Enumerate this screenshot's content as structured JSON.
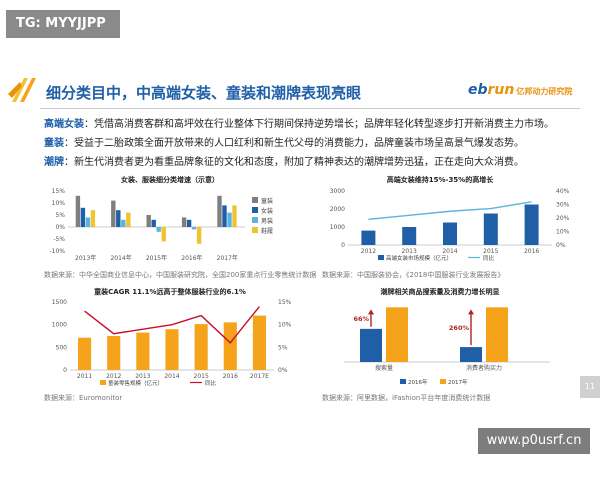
{
  "watermark_top": "TG: MYYJJPP",
  "watermark_bottom": "www.p0usrf.cn",
  "title": "细分类目中，中高端女装、童装和潮牌表现亮眼",
  "brand": {
    "main": "eb",
    "accent": "run",
    "sub": "亿邦动力研究院"
  },
  "paragraphs": [
    {
      "label": "高端女装",
      "text": "：凭借高消费客群和高坪效在行业整体下行期间保持逆势增长；品牌年轻化转型逐步打开新消费主力市场。"
    },
    {
      "label": "童装",
      "text": "：受益于二胎政策全面开放带来的人口红利和新生代父母的消费能力，品牌童装市场呈高景气爆发态势。"
    },
    {
      "label": "潮牌",
      "text": "：新生代消费者更为看重品牌象征的文化和态度，附加了精神表达的潮牌增势迅猛，正在走向大众消费。"
    }
  ],
  "page_number": "11",
  "colors": {
    "gray": "#7f7f7f",
    "blue": "#1f5fa8",
    "lightblue": "#5bb3df",
    "yellow": "#f2c230",
    "orange": "#f4a31b",
    "red": "#c8102e",
    "darkred": "#b22222"
  },
  "chart_data": [
    {
      "type": "bar",
      "title": "女装、服装细分类增速（示意）",
      "categories": [
        "2013年",
        "2014年",
        "2015年",
        "2016年",
        "2017年"
      ],
      "series": [
        {
          "name": "童装",
          "values": [
            13,
            11,
            5,
            4,
            13
          ]
        },
        {
          "name": "女装",
          "values": [
            8,
            7,
            3,
            3,
            9
          ]
        },
        {
          "name": "男装",
          "values": [
            4,
            3,
            -2,
            -1,
            6
          ]
        },
        {
          "name": "鞋履",
          "values": [
            7,
            6,
            -6,
            -7,
            9
          ]
        }
      ],
      "yticks": [
        "15%",
        "10%",
        "5%",
        "0%",
        "-5%",
        "-10%"
      ],
      "ylim": [
        -10,
        15
      ],
      "source": "数据来源：中华全国商业信息中心，中国服装研究院，全国200家重点行业零售统计数据",
      "legend": "right"
    },
    {
      "type": "bar",
      "title": "高端女装维持15%-35%的高增长",
      "categories": [
        "2012",
        "2013",
        "2014",
        "2015",
        "2016"
      ],
      "values": [
        800,
        1000,
        1250,
        1750,
        2250
      ],
      "line": [
        19,
        22,
        25,
        27,
        32
      ],
      "yticks": [
        "3000",
        "2000",
        "1000",
        "0"
      ],
      "ylim": [
        0,
        3000
      ],
      "y2ticks": [
        "40%",
        "30%",
        "20%",
        "10%",
        "0%"
      ],
      "legend_bar": "高端女装市场规模（亿元）",
      "legend_line": "同比",
      "source": "数据来源：中国服装协会，《2018中国服装行业发展报告》"
    },
    {
      "type": "bar",
      "title": "童装CAGR 11.1%远高于整体服装行业的6.1%",
      "categories": [
        "2011",
        "2012",
        "2013",
        "2014",
        "2015",
        "2016",
        "2017E"
      ],
      "values": [
        950,
        1000,
        1100,
        1200,
        1350,
        1400,
        1600
      ],
      "line": [
        13,
        8,
        9,
        10,
        12,
        6,
        14
      ],
      "yticks": [
        "1500",
        "1000",
        "500",
        "0"
      ],
      "ylim": [
        0,
        2000
      ],
      "y2ticks": [
        "15%",
        "10%",
        "5%",
        "0%"
      ],
      "legend_bar": "童装零售规模（亿元）",
      "legend_line": "同比",
      "source": "数据来源：Euromonitor"
    },
    {
      "type": "bar",
      "title": "潮牌相关商品搜索量及消费力增长明显",
      "categories": [
        "搜索量",
        "消费者购买力"
      ],
      "series": [
        {
          "name": "2016年",
          "values": [
            40,
            18
          ]
        },
        {
          "name": "2017年",
          "values": [
            66,
            66
          ]
        }
      ],
      "annotations": [
        "66%",
        "260%"
      ],
      "source": "数据来源：阿里数据，iFashion平台年度消费统计数据"
    }
  ]
}
